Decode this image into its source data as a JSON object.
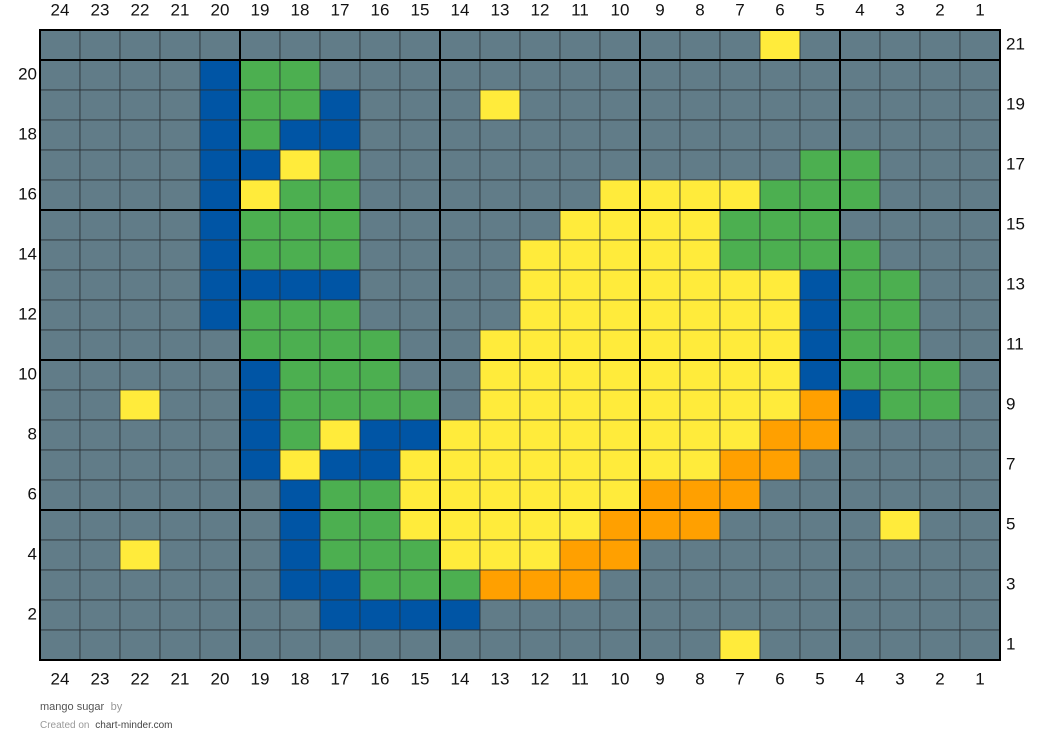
{
  "chart_data": {
    "type": "heatmap",
    "columns": 24,
    "rows": 21,
    "column_labels_top": [
      "24",
      "23",
      "22",
      "21",
      "20",
      "19",
      "18",
      "17",
      "16",
      "15",
      "14",
      "13",
      "12",
      "11",
      "10",
      "9",
      "8",
      "7",
      "6",
      "5",
      "4",
      "3",
      "2",
      "1"
    ],
    "column_labels_bottom": [
      "24",
      "23",
      "22",
      "21",
      "20",
      "19",
      "18",
      "17",
      "16",
      "15",
      "14",
      "13",
      "12",
      "11",
      "10",
      "9",
      "8",
      "7",
      "6",
      "5",
      "4",
      "3",
      "2",
      "1"
    ],
    "row_labels_right": [
      "21",
      "19",
      "17",
      "15",
      "13",
      "11",
      "9",
      "7",
      "5",
      "3",
      "1"
    ],
    "row_labels_left": [
      "20",
      "18",
      "16",
      "14",
      "12",
      "10",
      "8",
      "6",
      "4",
      "2"
    ],
    "palette": {
      "G": "#617C88",
      "B": "#0055A5",
      "E": "#4CAF50",
      "Y": "#FFEB3B",
      "O": "#FFA000"
    },
    "major_grid_every": 5,
    "grid": {
      "21": "GGGGGGGGGGGGGGGGGGYGGGGG",
      "20": "GGGGBEEGGGGGGGGGGGGGGGGG",
      "19": "GGGGBEEBGGGYGGGGGGGGGGGG",
      "18": "GGGGBEBBGGGGGGGGGGGGGGGG",
      "17": "GGGGBBYEGGGGGGGGGGGEEGGG",
      "16": "GGGGBYEEGGGGGGYYYYEEEGGG",
      "15": "GGGGBEEEGGGGGYYYYEEEGGGG",
      "14": "GGGGBEEEGGGGYYYYYEEEEGGG",
      "13": "GGGGBBBBGGGGYYYYYYYBEEGG",
      "12": "GGGGBEEEGGGGYYYYYYYBEEGG",
      "11": "GGGGGEEEEGGYYYYYYYYBEEGG",
      "10": "GGGGGBEEEGGYYYYYYYYBEEEG",
      "9": "GGYGGBEEEEGYYYYYYYYOBEEG",
      "8": "GGGGGBEYBBYYYYYYYYOOGGGG",
      "7": "GGGGGBYBBYYYYYYYYOOGGGGG",
      "6": "GGGGGGBEEYYYYYYOOOGGGGGG",
      "5": "GGGGGGBEEYYYYYOOOGGGGYGG",
      "4": "GGYGGGBEEEYYYOOGGGGGGGGG",
      "3": "GGGGGGBBEEEOOOGGGGGGGGGG",
      "2": "GGGGGGGBBBBGGGGGGGGGGGGG",
      "1": "GGGGGGGGGGGGGGGGGYGGGGGG"
    }
  },
  "footer": {
    "title": "mango sugar",
    "by": "by",
    "credit_prefix": "Created on",
    "credit_site": "chart-minder.com"
  }
}
